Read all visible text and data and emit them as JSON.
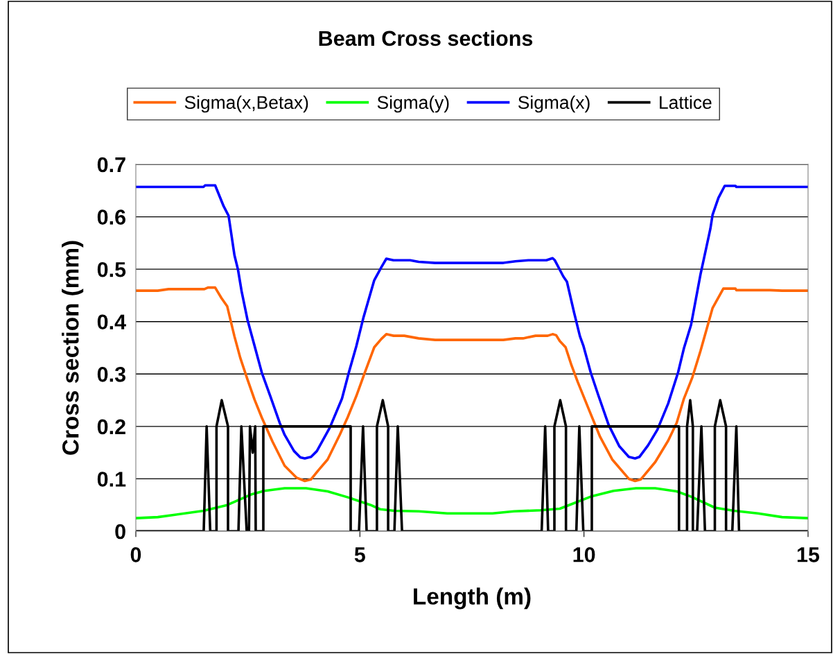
{
  "chart_data": {
    "type": "line",
    "title": "Beam Cross sections",
    "xlabel": "Length (m)",
    "ylabel": "Cross section (mm)",
    "xlim": [
      0,
      15
    ],
    "xticks": [
      0,
      5,
      10,
      15
    ],
    "ylim": [
      0,
      0.7
    ],
    "yticks": [
      0,
      0.1,
      0.2,
      0.3,
      0.4,
      0.5,
      0.6,
      0.7
    ],
    "grid": "y",
    "legend": "top",
    "marker": "none",
    "line_style": "solid",
    "series": [
      {
        "name": "Sigma(x,Betax)",
        "color": "#ff6600",
        "x": [
          0,
          0.49,
          0.73,
          1.53,
          1.61,
          1.77,
          1.91,
          2.04,
          2.2,
          2.33,
          2.49,
          2.65,
          2.81,
          3.05,
          3.32,
          3.59,
          3.77,
          3.91,
          4.07,
          4.28,
          4.55,
          4.73,
          4.92,
          5.11,
          5.32,
          5.48,
          5.59,
          5.75,
          5.99,
          6.31,
          6.68,
          7.58,
          8.2,
          8.47,
          8.64,
          8.92,
          9.19,
          9.3,
          9.38,
          9.46,
          9.59,
          9.72,
          9.86,
          10.12,
          10.36,
          10.63,
          11.0,
          11.14,
          11.27,
          11.59,
          11.88,
          12.07,
          12.23,
          12.42,
          12.6,
          12.87,
          13.11,
          13.38,
          13.4,
          14.15,
          14.42,
          15
        ],
        "values": [
          0.459,
          0.459,
          0.462,
          0.462,
          0.465,
          0.465,
          0.445,
          0.429,
          0.372,
          0.331,
          0.29,
          0.251,
          0.217,
          0.171,
          0.125,
          0.102,
          0.096,
          0.099,
          0.116,
          0.137,
          0.184,
          0.218,
          0.258,
          0.303,
          0.351,
          0.367,
          0.376,
          0.373,
          0.373,
          0.368,
          0.365,
          0.365,
          0.365,
          0.368,
          0.368,
          0.373,
          0.373,
          0.376,
          0.374,
          0.363,
          0.351,
          0.317,
          0.285,
          0.23,
          0.18,
          0.137,
          0.1,
          0.096,
          0.099,
          0.132,
          0.173,
          0.207,
          0.253,
          0.294,
          0.344,
          0.426,
          0.463,
          0.463,
          0.46,
          0.46,
          0.459,
          0.459
        ]
      },
      {
        "name": "Sigma(y)",
        "color": "#00ff00",
        "x": [
          0,
          0.49,
          1.51,
          2.04,
          2.57,
          2.87,
          3.32,
          3.8,
          4.28,
          4.76,
          5.24,
          5.45,
          5.77,
          6.31,
          6.95,
          7.58,
          7.96,
          8.44,
          9.03,
          9.46,
          9.67,
          10.15,
          10.66,
          11.16,
          11.59,
          12.07,
          12.39,
          12.92,
          13.35,
          13.88,
          14.42,
          15
        ],
        "values": [
          0.025,
          0.027,
          0.039,
          0.05,
          0.07,
          0.077,
          0.082,
          0.082,
          0.076,
          0.064,
          0.05,
          0.042,
          0.039,
          0.038,
          0.034,
          0.034,
          0.034,
          0.038,
          0.04,
          0.043,
          0.05,
          0.066,
          0.077,
          0.082,
          0.082,
          0.076,
          0.066,
          0.045,
          0.039,
          0.034,
          0.027,
          0.025
        ]
      },
      {
        "name": "Sigma(x)",
        "color": "#0000ff",
        "x": [
          0,
          1.51,
          1.55,
          1.77,
          1.96,
          2.07,
          2.2,
          2.28,
          2.36,
          2.49,
          2.68,
          2.81,
          3.0,
          3.21,
          3.32,
          3.53,
          3.67,
          3.77,
          3.91,
          4.04,
          4.33,
          4.6,
          4.76,
          4.92,
          5.08,
          5.32,
          5.48,
          5.59,
          5.75,
          6.12,
          6.31,
          6.68,
          7.58,
          8.2,
          8.47,
          8.76,
          9.16,
          9.3,
          9.35,
          9.54,
          9.62,
          9.78,
          9.91,
          9.99,
          10.15,
          10.31,
          10.55,
          10.79,
          11.0,
          11.14,
          11.24,
          11.43,
          11.64,
          11.88,
          12.1,
          12.23,
          12.39,
          12.6,
          12.82,
          12.87,
          13.0,
          13.14,
          13.38,
          13.4,
          15
        ],
        "values": [
          0.657,
          0.657,
          0.66,
          0.66,
          0.62,
          0.602,
          0.527,
          0.499,
          0.458,
          0.404,
          0.344,
          0.303,
          0.258,
          0.207,
          0.184,
          0.153,
          0.141,
          0.139,
          0.142,
          0.153,
          0.198,
          0.253,
          0.305,
          0.353,
          0.408,
          0.479,
          0.504,
          0.52,
          0.517,
          0.517,
          0.514,
          0.512,
          0.512,
          0.512,
          0.515,
          0.517,
          0.517,
          0.521,
          0.517,
          0.486,
          0.476,
          0.417,
          0.372,
          0.353,
          0.303,
          0.262,
          0.203,
          0.162,
          0.142,
          0.139,
          0.142,
          0.164,
          0.194,
          0.244,
          0.303,
          0.349,
          0.394,
          0.49,
          0.577,
          0.604,
          0.636,
          0.659,
          0.659,
          0.657,
          0.657
        ]
      },
      {
        "name": "Lattice",
        "color": "#000000",
        "x": [
          0,
          1.515,
          1.58,
          1.66,
          1.8,
          1.8,
          1.917,
          2.057,
          2.057,
          2.29,
          2.355,
          2.474,
          2.525,
          2.547,
          2.608,
          2.664,
          2.675,
          2.845,
          2.845,
          4.794,
          4.794,
          4.98,
          5.07,
          5.15,
          5.38,
          5.38,
          5.51,
          5.63,
          5.63,
          5.77,
          5.845,
          5.94,
          9.056,
          9.134,
          9.2,
          9.34,
          9.34,
          9.47,
          9.598,
          9.598,
          9.83,
          9.896,
          9.985,
          10.175,
          10.175,
          12.12,
          12.12,
          12.3,
          12.3,
          12.37,
          12.43,
          12.43,
          12.525,
          12.62,
          12.7,
          12.92,
          12.92,
          13.04,
          13.17,
          13.17,
          13.31,
          13.4,
          13.46,
          15
        ],
        "values": [
          0,
          0,
          0.2,
          0,
          0,
          0.2,
          0.25,
          0.2,
          0,
          0,
          0.2,
          0,
          0,
          0.2,
          0.15,
          0.2,
          0,
          0,
          0.2,
          0.2,
          0,
          0,
          0.2,
          0,
          0,
          0.2,
          0.25,
          0.2,
          0,
          0,
          0.2,
          0,
          0,
          0.2,
          0,
          0,
          0.2,
          0.25,
          0.2,
          0,
          0,
          0.2,
          0,
          0,
          0.2,
          0.2,
          0,
          0,
          0.2,
          0.25,
          0.2,
          0,
          0,
          0.2,
          0,
          0,
          0.2,
          0.25,
          0.2,
          0,
          0,
          0.2,
          0,
          0
        ]
      }
    ]
  }
}
